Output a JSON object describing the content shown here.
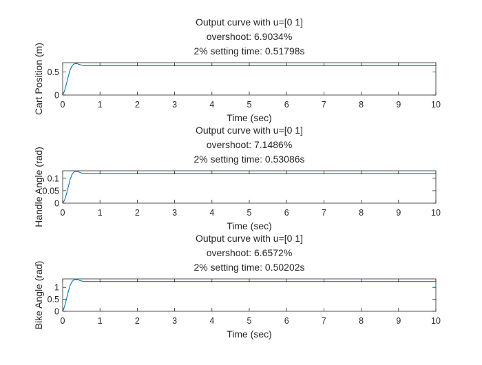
{
  "chart_data": [
    {
      "type": "line",
      "title": [
        "Output curve with u=[0 1]",
        "overshoot: 6.9034%",
        "2% setting time: 0.51798s"
      ],
      "xlabel": "Time (sec)",
      "ylabel": "Cart Position (m)",
      "xlim": [
        0,
        10
      ],
      "ylim": [
        0,
        0.7
      ],
      "xticks": [
        0,
        1,
        2,
        3,
        4,
        5,
        6,
        7,
        8,
        9,
        10
      ],
      "xtick_labels": [
        "0",
        "1",
        "2",
        "3",
        "4",
        "5",
        "6",
        "7",
        "8",
        "9",
        "10"
      ],
      "yticks": [
        0,
        0.5
      ],
      "ytick_labels": [
        "0",
        "0.5"
      ],
      "grid": false,
      "series": [
        {
          "color": "#0072BD",
          "x": [
            0,
            0.05,
            0.1,
            0.15,
            0.2,
            0.25,
            0.3,
            0.35,
            0.4,
            0.45,
            0.5,
            0.55,
            0.6,
            0.7,
            0.8,
            1.0,
            2.0,
            10.0
          ],
          "y": [
            0,
            0.09,
            0.24,
            0.4,
            0.54,
            0.63,
            0.67,
            0.68,
            0.675,
            0.66,
            0.648,
            0.64,
            0.636,
            0.635,
            0.636,
            0.636,
            0.636,
            0.636
          ]
        }
      ]
    },
    {
      "type": "line",
      "title": [
        "Output curve with u=[0 1]",
        "overshoot: 7.1486%",
        "2% setting time: 0.53086s"
      ],
      "xlabel": "Time (sec)",
      "ylabel": "Handle Angle (rad)",
      "xlim": [
        0,
        10
      ],
      "ylim": [
        0,
        0.13
      ],
      "xticks": [
        0,
        1,
        2,
        3,
        4,
        5,
        6,
        7,
        8,
        9,
        10
      ],
      "xtick_labels": [
        "0",
        "1",
        "2",
        "3",
        "4",
        "5",
        "6",
        "7",
        "8",
        "9",
        "10"
      ],
      "yticks": [
        0,
        0.05,
        0.1
      ],
      "ytick_labels": [
        "0",
        "0.05",
        "0.1"
      ],
      "grid": false,
      "series": [
        {
          "color": "#0072BD",
          "x": [
            0,
            0.05,
            0.1,
            0.15,
            0.2,
            0.25,
            0.3,
            0.35,
            0.4,
            0.45,
            0.5,
            0.55,
            0.6,
            0.7,
            0.8,
            1.0,
            2.0,
            10.0
          ],
          "y": [
            0,
            0.012,
            0.035,
            0.065,
            0.095,
            0.115,
            0.125,
            0.128,
            0.127,
            0.124,
            0.121,
            0.12,
            0.119,
            0.119,
            0.119,
            0.119,
            0.119,
            0.119
          ]
        }
      ]
    },
    {
      "type": "line",
      "title": [
        "Output curve with u=[0 1]",
        "overshoot: 6.6572%",
        "2% setting time: 0.50202s"
      ],
      "xlabel": "Time (sec)",
      "ylabel": "Bike Angle (rad)",
      "xlim": [
        0,
        10
      ],
      "ylim": [
        0,
        1.35
      ],
      "xticks": [
        0,
        1,
        2,
        3,
        4,
        5,
        6,
        7,
        8,
        9,
        10
      ],
      "xtick_labels": [
        "0",
        "1",
        "2",
        "3",
        "4",
        "5",
        "6",
        "7",
        "8",
        "9",
        "10"
      ],
      "yticks": [
        0,
        0.5,
        1
      ],
      "ytick_labels": [
        "0",
        "0.5",
        "1"
      ],
      "grid": false,
      "series": [
        {
          "color": "#0072BD",
          "x": [
            0,
            0.05,
            0.1,
            0.15,
            0.2,
            0.25,
            0.3,
            0.35,
            0.4,
            0.45,
            0.5,
            0.55,
            0.6,
            0.7,
            0.8,
            1.0,
            2.0,
            10.0
          ],
          "y": [
            0,
            0.2,
            0.5,
            0.82,
            1.08,
            1.24,
            1.31,
            1.33,
            1.32,
            1.29,
            1.265,
            1.25,
            1.245,
            1.245,
            1.245,
            1.245,
            1.245,
            1.245
          ]
        }
      ]
    }
  ]
}
